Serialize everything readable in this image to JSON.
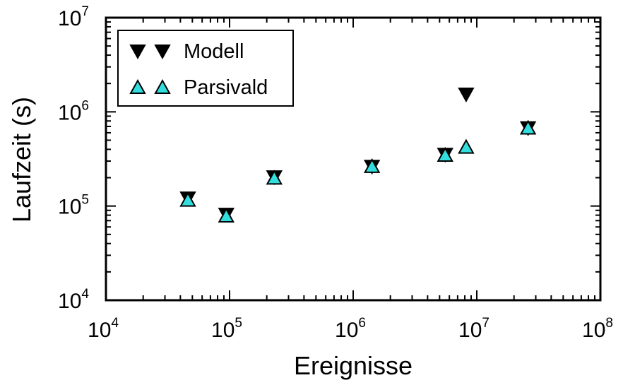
{
  "chart_data": {
    "type": "scatter",
    "title": "",
    "xlabel": "Ereignisse",
    "ylabel": "Laufzeit (s)",
    "xscale": "log",
    "yscale": "log",
    "xlim": [
      10000,
      100000000
    ],
    "ylim": [
      10000,
      10000000
    ],
    "x_ticks": [
      {
        "base": "10",
        "exp": "4"
      },
      {
        "base": "10",
        "exp": "5"
      },
      {
        "base": "10",
        "exp": "6"
      },
      {
        "base": "10",
        "exp": "7"
      },
      {
        "base": "10",
        "exp": "8"
      }
    ],
    "y_ticks": [
      {
        "base": "10",
        "exp": "4"
      },
      {
        "base": "10",
        "exp": "5"
      },
      {
        "base": "10",
        "exp": "6"
      },
      {
        "base": "10",
        "exp": "7"
      }
    ],
    "grid": false,
    "legend_position": "top-left",
    "series": [
      {
        "name": "Modell",
        "marker": "triangle-down",
        "color": "#000000",
        "points": [
          {
            "x": 46000,
            "y": 122000
          },
          {
            "x": 94000,
            "y": 82000
          },
          {
            "x": 230000,
            "y": 205000
          },
          {
            "x": 1420000,
            "y": 265000
          },
          {
            "x": 5550000,
            "y": 355000
          },
          {
            "x": 8200000,
            "y": 1550000
          },
          {
            "x": 26000000,
            "y": 680000
          }
        ]
      },
      {
        "name": "Parsivald",
        "marker": "triangle-up",
        "color": "#33dddd",
        "points": [
          {
            "x": 46000,
            "y": 115000
          },
          {
            "x": 94000,
            "y": 78000
          },
          {
            "x": 230000,
            "y": 197000
          },
          {
            "x": 1420000,
            "y": 262000
          },
          {
            "x": 5550000,
            "y": 345000
          },
          {
            "x": 8200000,
            "y": 420000
          },
          {
            "x": 26000000,
            "y": 670000
          }
        ]
      }
    ]
  }
}
